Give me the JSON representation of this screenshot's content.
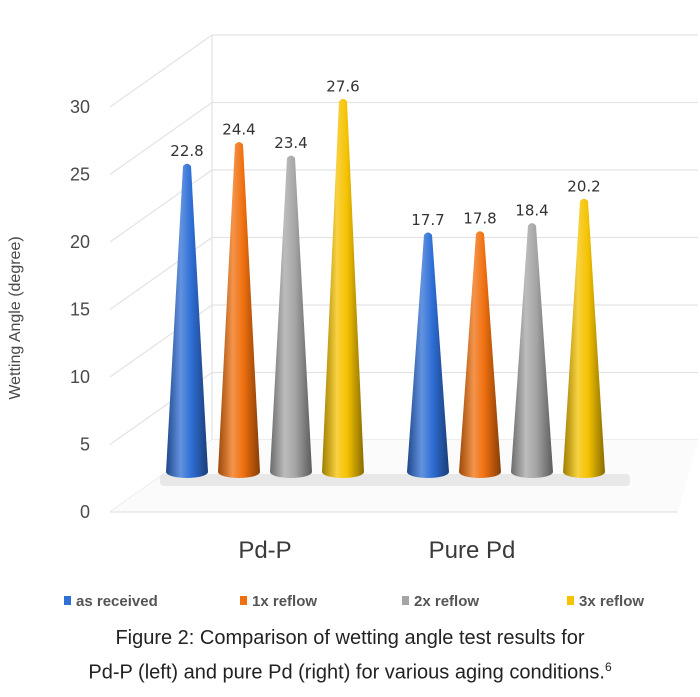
{
  "chart_data": {
    "type": "bar",
    "style": "3d-cones",
    "categories": [
      "Pd-P",
      "Pure Pd"
    ],
    "series": [
      {
        "name": "as received",
        "values": [
          22.8,
          17.7
        ],
        "color": "#2f6fd6"
      },
      {
        "name": "1x  reflow",
        "values": [
          24.4,
          17.8
        ],
        "color": "#f0700f"
      },
      {
        "name": "2x  reflow",
        "values": [
          23.4,
          18.4
        ],
        "color": "#a5a5a5"
      },
      {
        "name": "3x  reflow",
        "values": [
          27.6,
          20.2
        ],
        "color": "#f5c200"
      }
    ],
    "ylabel": "Wetting Angle (degree)",
    "ylim": [
      0,
      30
    ],
    "yticks": [
      "0",
      "5",
      "10",
      "15",
      "20",
      "25",
      "30"
    ],
    "grid": true,
    "legend_position": "bottom"
  },
  "caption": {
    "line1": "Figure 2: Comparison of wetting angle test results for",
    "line2": "Pd-P (left) and pure Pd (right) for various aging conditions.",
    "ref": "6"
  }
}
